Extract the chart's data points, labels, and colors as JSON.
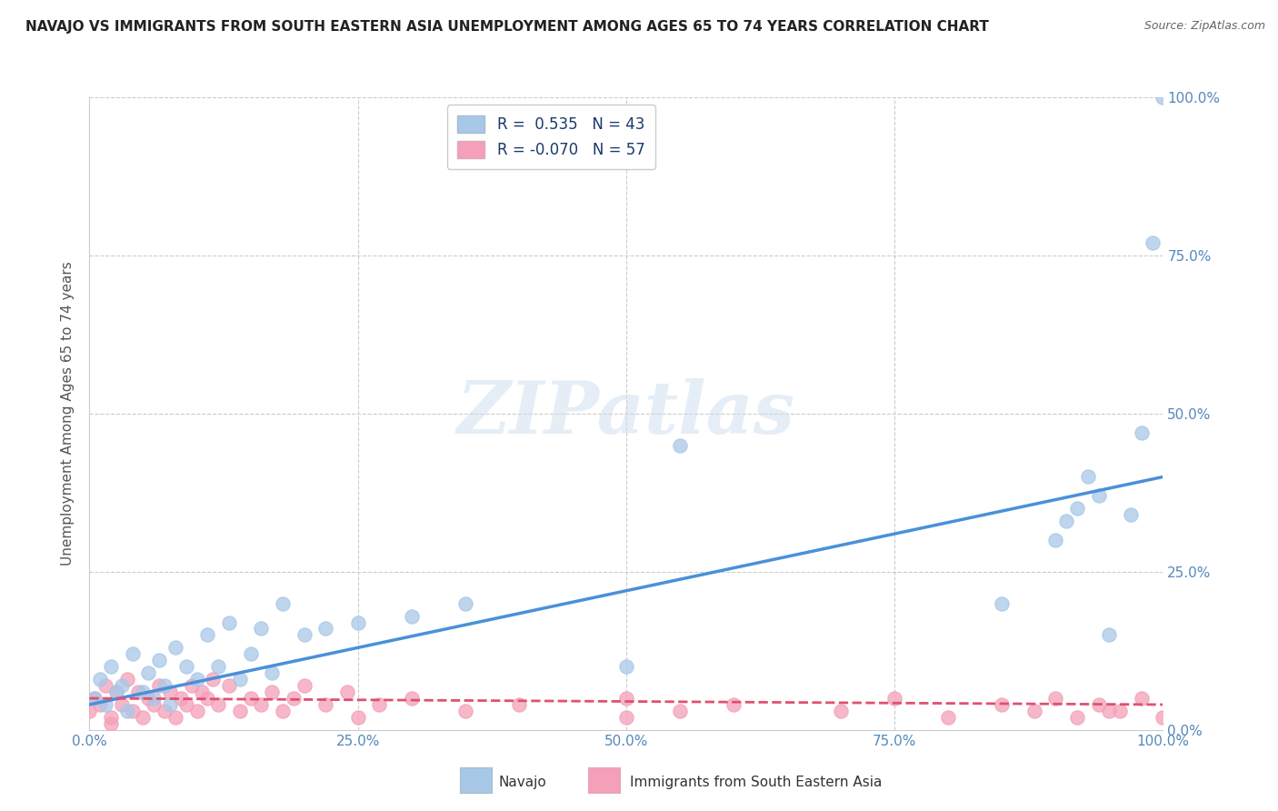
{
  "title": "NAVAJO VS IMMIGRANTS FROM SOUTH EASTERN ASIA UNEMPLOYMENT AMONG AGES 65 TO 74 YEARS CORRELATION CHART",
  "source": "Source: ZipAtlas.com",
  "ylabel": "Unemployment Among Ages 65 to 74 years",
  "xlim": [
    0.0,
    1.0
  ],
  "ylim": [
    0.0,
    1.0
  ],
  "xtick_vals": [
    0.0,
    0.25,
    0.5,
    0.75,
    1.0
  ],
  "xtick_labels": [
    "0.0%",
    "25.0%",
    "50.0%",
    "75.0%",
    "100.0%"
  ],
  "ytick_vals": [
    0.0,
    0.25,
    0.5,
    0.75,
    1.0
  ],
  "ytick_labels": [
    "0.0%",
    "25.0%",
    "50.0%",
    "75.0%",
    "100.0%"
  ],
  "watermark": "ZIPatlas",
  "navajo_color": "#a8c8e8",
  "immigrants_color": "#f4a0b8",
  "navajo_line_color": "#4a90d9",
  "immigrants_line_color": "#e05070",
  "background_color": "#ffffff",
  "grid_color": "#cccccc",
  "navajo_R": 0.535,
  "immigrants_R": -0.07,
  "navajo_N": 43,
  "immigrants_N": 57,
  "navajo_scatter_x": [
    0.005,
    0.01,
    0.015,
    0.02,
    0.025,
    0.03,
    0.035,
    0.04,
    0.05,
    0.055,
    0.06,
    0.065,
    0.07,
    0.075,
    0.08,
    0.09,
    0.1,
    0.11,
    0.12,
    0.13,
    0.14,
    0.15,
    0.16,
    0.17,
    0.18,
    0.2,
    0.22,
    0.25,
    0.3,
    0.35,
    0.5,
    0.55,
    0.85,
    0.9,
    0.91,
    0.92,
    0.93,
    0.94,
    0.95,
    0.97,
    0.98,
    0.99,
    1.0
  ],
  "navajo_scatter_y": [
    0.05,
    0.08,
    0.04,
    0.1,
    0.06,
    0.07,
    0.03,
    0.12,
    0.06,
    0.09,
    0.05,
    0.11,
    0.07,
    0.04,
    0.13,
    0.1,
    0.08,
    0.15,
    0.1,
    0.17,
    0.08,
    0.12,
    0.16,
    0.09,
    0.2,
    0.15,
    0.16,
    0.17,
    0.18,
    0.2,
    0.1,
    0.45,
    0.2,
    0.3,
    0.33,
    0.35,
    0.4,
    0.37,
    0.15,
    0.34,
    0.47,
    0.77,
    1.0
  ],
  "immigrants_scatter_x": [
    0.0,
    0.005,
    0.01,
    0.015,
    0.02,
    0.025,
    0.03,
    0.035,
    0.04,
    0.045,
    0.05,
    0.055,
    0.06,
    0.065,
    0.07,
    0.075,
    0.08,
    0.085,
    0.09,
    0.095,
    0.1,
    0.105,
    0.11,
    0.115,
    0.12,
    0.13,
    0.14,
    0.15,
    0.16,
    0.17,
    0.18,
    0.19,
    0.2,
    0.22,
    0.24,
    0.25,
    0.27,
    0.3,
    0.35,
    0.4,
    0.5,
    0.55,
    0.85,
    0.88,
    0.9,
    0.92,
    0.94,
    0.96,
    0.98,
    1.0,
    0.5,
    0.6,
    0.7,
    0.75,
    0.8,
    0.95,
    0.02
  ],
  "immigrants_scatter_y": [
    0.03,
    0.05,
    0.04,
    0.07,
    0.02,
    0.06,
    0.04,
    0.08,
    0.03,
    0.06,
    0.02,
    0.05,
    0.04,
    0.07,
    0.03,
    0.06,
    0.02,
    0.05,
    0.04,
    0.07,
    0.03,
    0.06,
    0.05,
    0.08,
    0.04,
    0.07,
    0.03,
    0.05,
    0.04,
    0.06,
    0.03,
    0.05,
    0.07,
    0.04,
    0.06,
    0.02,
    0.04,
    0.05,
    0.03,
    0.04,
    0.05,
    0.03,
    0.04,
    0.03,
    0.05,
    0.02,
    0.04,
    0.03,
    0.05,
    0.02,
    0.02,
    0.04,
    0.03,
    0.05,
    0.02,
    0.03,
    0.01
  ],
  "navajo_line_x0": 0.0,
  "navajo_line_x1": 1.0,
  "navajo_line_y0": 0.04,
  "navajo_line_y1": 0.4,
  "immigrants_line_x0": 0.0,
  "immigrants_line_x1": 1.0,
  "immigrants_line_y0": 0.05,
  "immigrants_line_y1": 0.04
}
